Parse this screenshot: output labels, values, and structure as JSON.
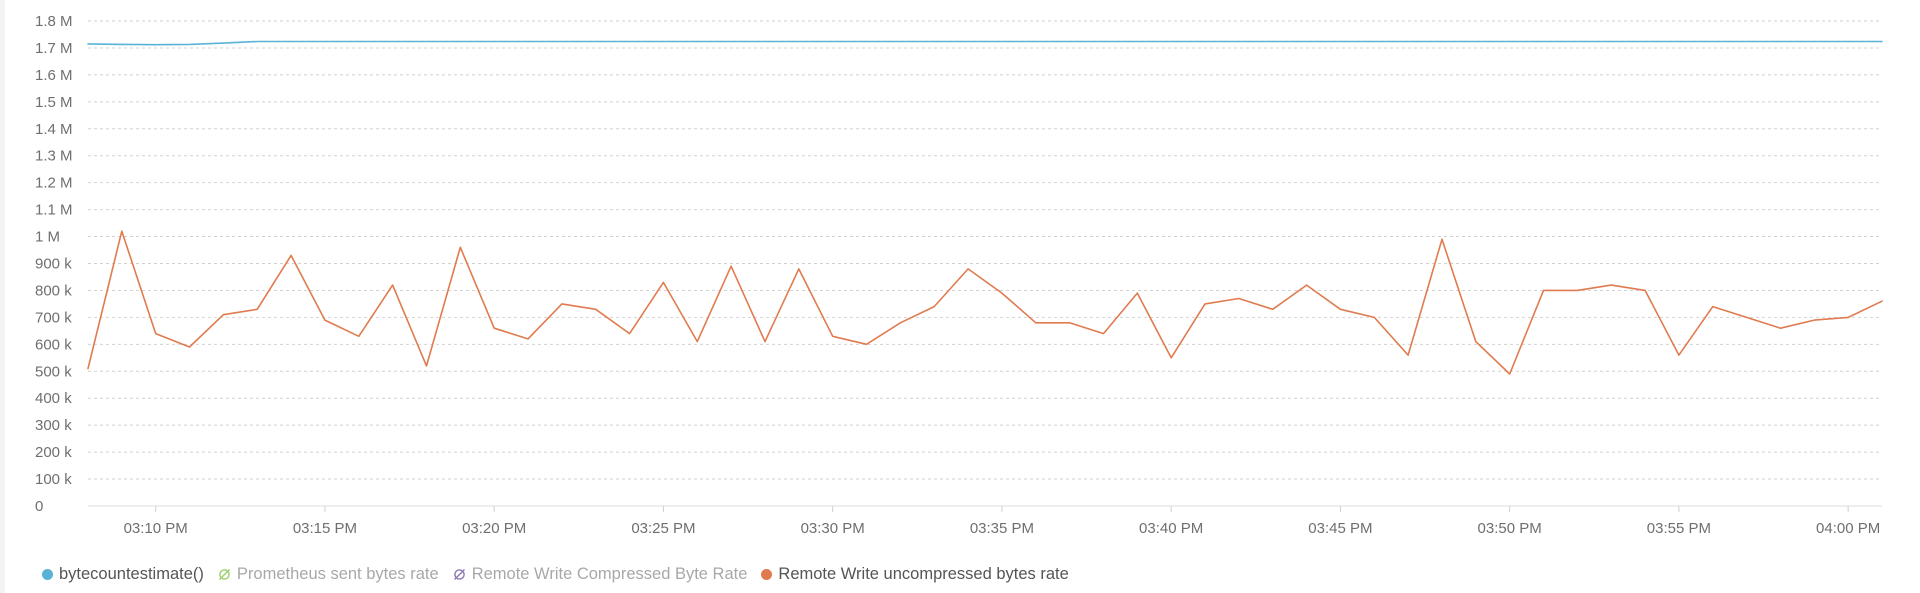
{
  "chart_data": {
    "type": "line",
    "title": "",
    "xlabel": "",
    "ylabel": "",
    "ylim": [
      0,
      1800000
    ],
    "y_ticks": [
      {
        "value": 0,
        "label": "0"
      },
      {
        "value": 100000,
        "label": "100 k"
      },
      {
        "value": 200000,
        "label": "200 k"
      },
      {
        "value": 300000,
        "label": "300 k"
      },
      {
        "value": 400000,
        "label": "400 k"
      },
      {
        "value": 500000,
        "label": "500 k"
      },
      {
        "value": 600000,
        "label": "600 k"
      },
      {
        "value": 700000,
        "label": "700 k"
      },
      {
        "value": 800000,
        "label": "800 k"
      },
      {
        "value": 900000,
        "label": "900 k"
      },
      {
        "value": 1000000,
        "label": "1 M"
      },
      {
        "value": 1100000,
        "label": "1.1 M"
      },
      {
        "value": 1200000,
        "label": "1.2 M"
      },
      {
        "value": 1300000,
        "label": "1.3 M"
      },
      {
        "value": 1400000,
        "label": "1.4 M"
      },
      {
        "value": 1500000,
        "label": "1.5 M"
      },
      {
        "value": 1600000,
        "label": "1.6 M"
      },
      {
        "value": 1700000,
        "label": "1.7 M"
      },
      {
        "value": 1800000,
        "label": "1.8 M"
      }
    ],
    "xlim": [
      "03:08",
      "04:01"
    ],
    "x_ticks": [
      {
        "value": "03:10",
        "label": "03:10 PM"
      },
      {
        "value": "03:15",
        "label": "03:15 PM"
      },
      {
        "value": "03:20",
        "label": "03:20 PM"
      },
      {
        "value": "03:25",
        "label": "03:25 PM"
      },
      {
        "value": "03:30",
        "label": "03:30 PM"
      },
      {
        "value": "03:35",
        "label": "03:35 PM"
      },
      {
        "value": "03:40",
        "label": "03:40 PM"
      },
      {
        "value": "03:45",
        "label": "03:45 PM"
      },
      {
        "value": "03:50",
        "label": "03:50 PM"
      },
      {
        "value": "03:55",
        "label": "03:55 PM"
      },
      {
        "value": "04:00",
        "label": "04:00 PM"
      }
    ],
    "grid": true,
    "legend_position": "bottom-left",
    "series": [
      {
        "name": "bytecountestimate()",
        "color": "#5ab3d6",
        "visible": true,
        "x": [
          "03:08",
          "03:09",
          "03:10",
          "03:11",
          "03:12",
          "03:13",
          "04:01"
        ],
        "values": [
          1715000,
          1713000,
          1712000,
          1713000,
          1718000,
          1724000,
          1724000
        ]
      },
      {
        "name": "Prometheus sent bytes rate",
        "color": "#9bcf6b",
        "visible": false,
        "x": [],
        "values": []
      },
      {
        "name": "Remote Write Compressed Byte Rate",
        "color": "#8e79b2",
        "visible": false,
        "x": [],
        "values": []
      },
      {
        "name": "Remote Write uncompressed bytes rate",
        "color": "#e07b4f",
        "visible": true,
        "x": [
          "03:08",
          "03:09",
          "03:10",
          "03:11",
          "03:12",
          "03:13",
          "03:14",
          "03:15",
          "03:16",
          "03:17",
          "03:18",
          "03:19",
          "03:20",
          "03:21",
          "03:22",
          "03:23",
          "03:24",
          "03:25",
          "03:26",
          "03:27",
          "03:28",
          "03:29",
          "03:30",
          "03:31",
          "03:32",
          "03:33",
          "03:34",
          "03:35",
          "03:36",
          "03:37",
          "03:38",
          "03:39",
          "03:40",
          "03:41",
          "03:42",
          "03:43",
          "03:44",
          "03:45",
          "03:46",
          "03:47",
          "03:48",
          "03:49",
          "03:50",
          "03:51",
          "03:52",
          "03:53",
          "03:54",
          "03:55",
          "03:56",
          "03:57",
          "03:58",
          "03:59",
          "04:00",
          "04:01"
        ],
        "values": [
          510000,
          1020000,
          640000,
          590000,
          710000,
          730000,
          930000,
          690000,
          630000,
          820000,
          520000,
          960000,
          660000,
          620000,
          750000,
          730000,
          640000,
          830000,
          610000,
          890000,
          610000,
          880000,
          630000,
          600000,
          680000,
          740000,
          880000,
          790000,
          680000,
          680000,
          640000,
          790000,
          550000,
          750000,
          770000,
          730000,
          820000,
          730000,
          700000,
          560000,
          990000,
          610000,
          490000,
          800000,
          800000,
          820000,
          800000,
          560000,
          740000,
          700000,
          660000,
          690000,
          700000,
          760000
        ]
      }
    ]
  }
}
